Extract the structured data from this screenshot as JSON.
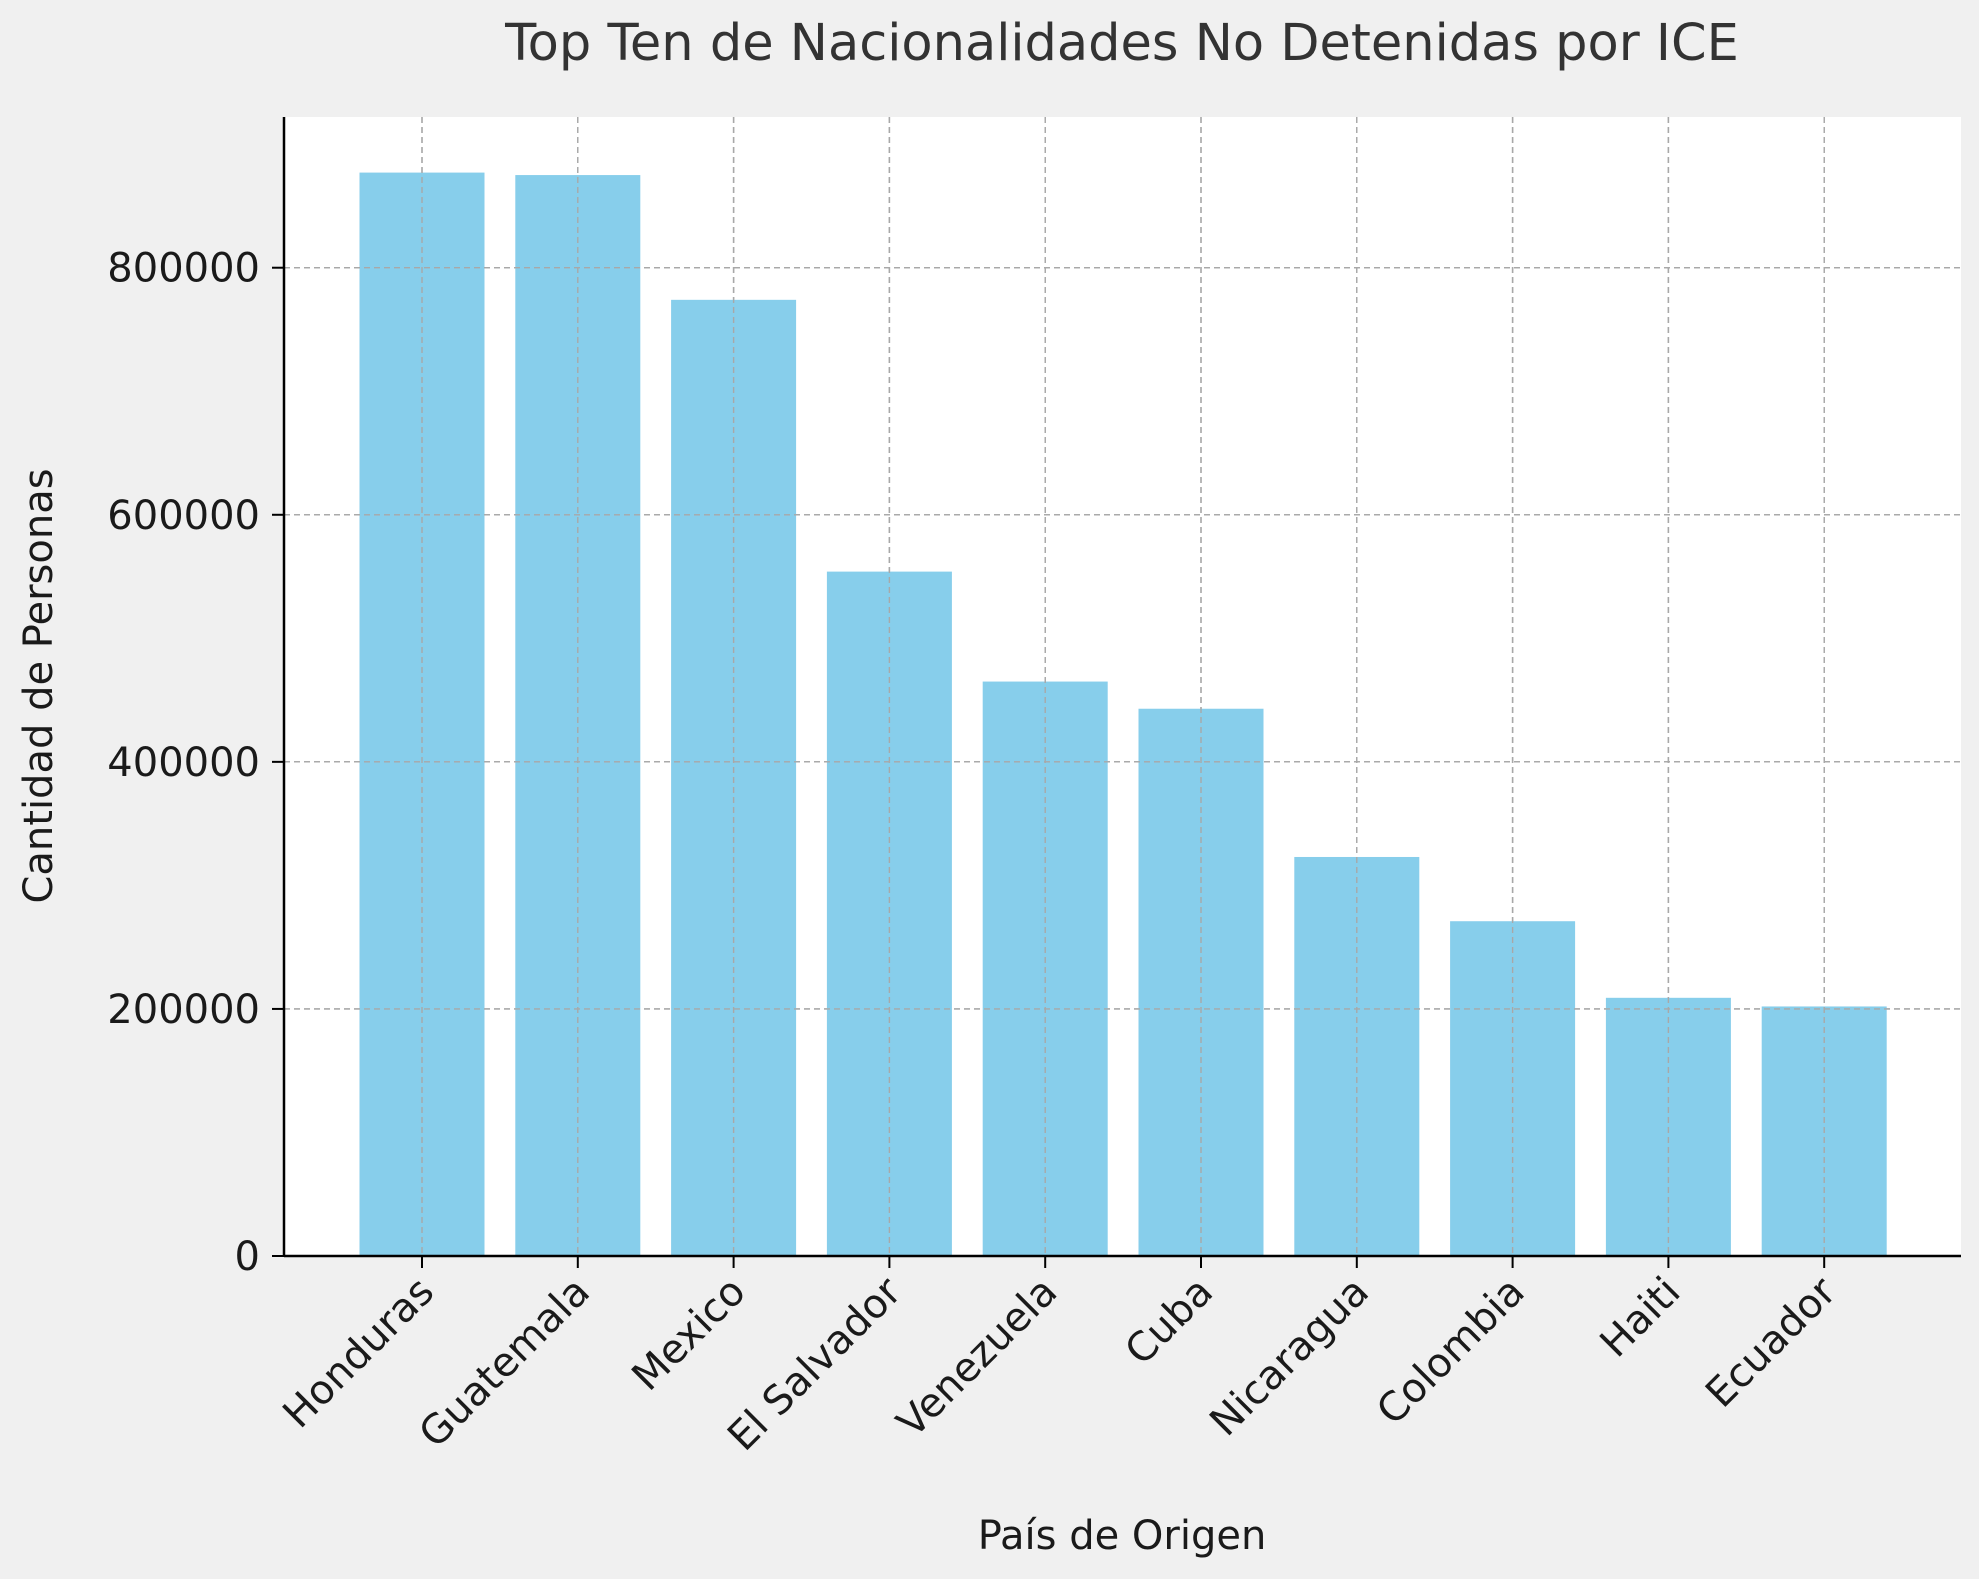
{
  "chart_data": {
    "type": "bar",
    "title": "Top Ten de Nacionalidades No Detenidas por ICE",
    "xlabel": "País de Origen",
    "ylabel": "Cantidad de Personas",
    "categories": [
      "Honduras",
      "Guatemala",
      "Mexico",
      "El Salvador",
      "Venezuela",
      "Cuba",
      "Nicaragua",
      "Colombia",
      "Haiti",
      "Ecuador"
    ],
    "values": [
      877000,
      875000,
      774000,
      554000,
      465000,
      443000,
      323000,
      271000,
      209000,
      202000
    ],
    "ylim": [
      0,
      922000
    ],
    "yticks": [
      0,
      200000,
      400000,
      600000,
      800000
    ],
    "ytick_labels": [
      "0",
      "200000",
      "400000",
      "600000",
      "800000"
    ],
    "bar_color": "#87ceeb",
    "grid": true,
    "x_tick_rotation": "45°"
  }
}
